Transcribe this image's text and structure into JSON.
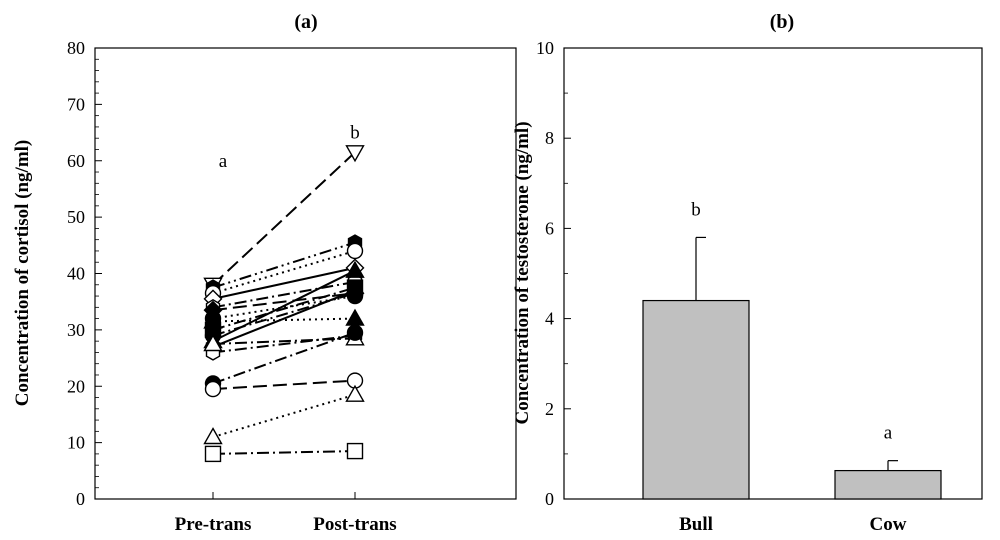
{
  "chart_data": [
    {
      "type": "line",
      "title": "(a)",
      "ylabel": "Concentration of cortisol (ng/ml)",
      "xlabel": "",
      "categories": [
        "Pre-trans",
        "Post-trans"
      ],
      "ylim": [
        0,
        80
      ],
      "yticks": [
        0,
        10,
        20,
        30,
        40,
        50,
        60,
        70,
        80
      ],
      "annotations": [
        {
          "text": "a",
          "category": "Pre-trans",
          "y": 60
        },
        {
          "text": "b",
          "category": "Post-trans",
          "y": 65
        }
      ],
      "series": [
        {
          "values": [
            38,
            61.5
          ],
          "marker": "triangle-down",
          "fill": "open",
          "dash": "long-dash"
        },
        {
          "values": [
            37.5,
            45.5
          ],
          "marker": "hexagon",
          "fill": "filled",
          "dash": "dash-dot-dot"
        },
        {
          "values": [
            36.5,
            44
          ],
          "marker": "circle",
          "fill": "open",
          "dash": "dotted"
        },
        {
          "values": [
            35.5,
            41
          ],
          "marker": "diamond",
          "fill": "open",
          "dash": "solid"
        },
        {
          "values": [
            34,
            38.5
          ],
          "marker": "hexagon",
          "fill": "open",
          "dash": "dash-dot"
        },
        {
          "values": [
            33.5,
            36.5
          ],
          "marker": "diamond",
          "fill": "filled",
          "dash": "long-dash"
        },
        {
          "values": [
            32,
            36
          ],
          "marker": "circle",
          "fill": "filled",
          "dash": "dotted"
        },
        {
          "values": [
            31.5,
            32
          ],
          "marker": "triangle-up",
          "fill": "filled",
          "dash": "dotted"
        },
        {
          "values": [
            30,
            37.5
          ],
          "marker": "square",
          "fill": "filled",
          "dash": "dash-dot"
        },
        {
          "values": [
            29,
            36.5
          ],
          "marker": "circle",
          "fill": "filled",
          "dash": "dash-dot"
        },
        {
          "values": [
            28,
            40.5
          ],
          "marker": "triangle-up",
          "fill": "filled",
          "dash": "solid"
        },
        {
          "values": [
            27,
            37
          ],
          "marker": "hexagon",
          "fill": "filled",
          "dash": "solid"
        },
        {
          "values": [
            26,
            29
          ],
          "marker": "hexagon",
          "fill": "open",
          "dash": "dash-dot"
        },
        {
          "values": [
            27.5,
            28.5
          ],
          "marker": "triangle-up",
          "fill": "open",
          "dash": "dash-dot"
        },
        {
          "values": [
            20.5,
            29.5
          ],
          "marker": "circle",
          "fill": "filled",
          "dash": "dash-dot"
        },
        {
          "values": [
            19.5,
            21
          ],
          "marker": "circle",
          "fill": "open",
          "dash": "long-dash"
        },
        {
          "values": [
            11,
            18.5
          ],
          "marker": "triangle-up",
          "fill": "open",
          "dash": "dotted"
        },
        {
          "values": [
            8,
            8.5
          ],
          "marker": "square",
          "fill": "open",
          "dash": "dash-dot"
        }
      ]
    },
    {
      "type": "bar",
      "title": "(b)",
      "ylabel": "Concentration of testosterone (ng/ml)",
      "xlabel": "",
      "categories": [
        "Bull",
        "Cow"
      ],
      "values": [
        4.4,
        0.63
      ],
      "error": [
        1.4,
        0.22
      ],
      "letters": [
        "b",
        "a"
      ],
      "ylim": [
        0,
        10
      ],
      "yticks": [
        0,
        2,
        4,
        6,
        8,
        10
      ],
      "bar_color": "#c0c0c0"
    }
  ]
}
